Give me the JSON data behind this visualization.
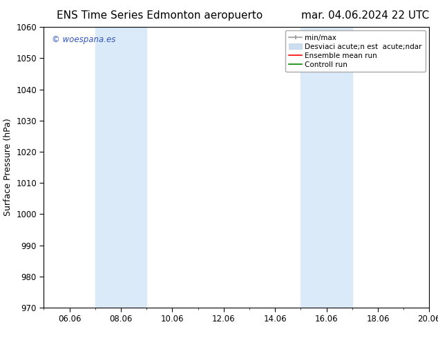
{
  "title_left": "ENS Time Series Edmonton aeropuerto",
  "title_right": "mar. 04.06.2024 22 UTC",
  "ylabel": "Surface Pressure (hPa)",
  "ylim": [
    970,
    1060
  ],
  "yticks": [
    970,
    980,
    990,
    1000,
    1010,
    1020,
    1030,
    1040,
    1050,
    1060
  ],
  "xlim": [
    0,
    15
  ],
  "xtick_labels": [
    "06.06",
    "08.06",
    "10.06",
    "12.06",
    "14.06",
    "16.06",
    "18.06",
    "20.06"
  ],
  "xtick_positions": [
    1,
    3,
    5,
    7,
    9,
    11,
    13,
    15
  ],
  "bg_color": "#ffffff",
  "plot_bg_color": "#ffffff",
  "shaded_regions": [
    {
      "xmin": 2,
      "xmax": 4,
      "color": "#daeaf8"
    },
    {
      "xmin": 10,
      "xmax": 12,
      "color": "#daeaf8"
    }
  ],
  "watermark": "© woespana.es",
  "watermark_color": "#3355bb",
  "legend_labels": [
    "min/max",
    "Desviaci acute;n est  acute;ndar",
    "Ensemble mean run",
    "Controll run"
  ],
  "legend_colors_line": [
    "#999999",
    "#ccddee",
    "#ff0000",
    "#008800"
  ],
  "title_fontsize": 11,
  "axis_label_fontsize": 9,
  "tick_fontsize": 8.5,
  "legend_fontsize": 7.5
}
